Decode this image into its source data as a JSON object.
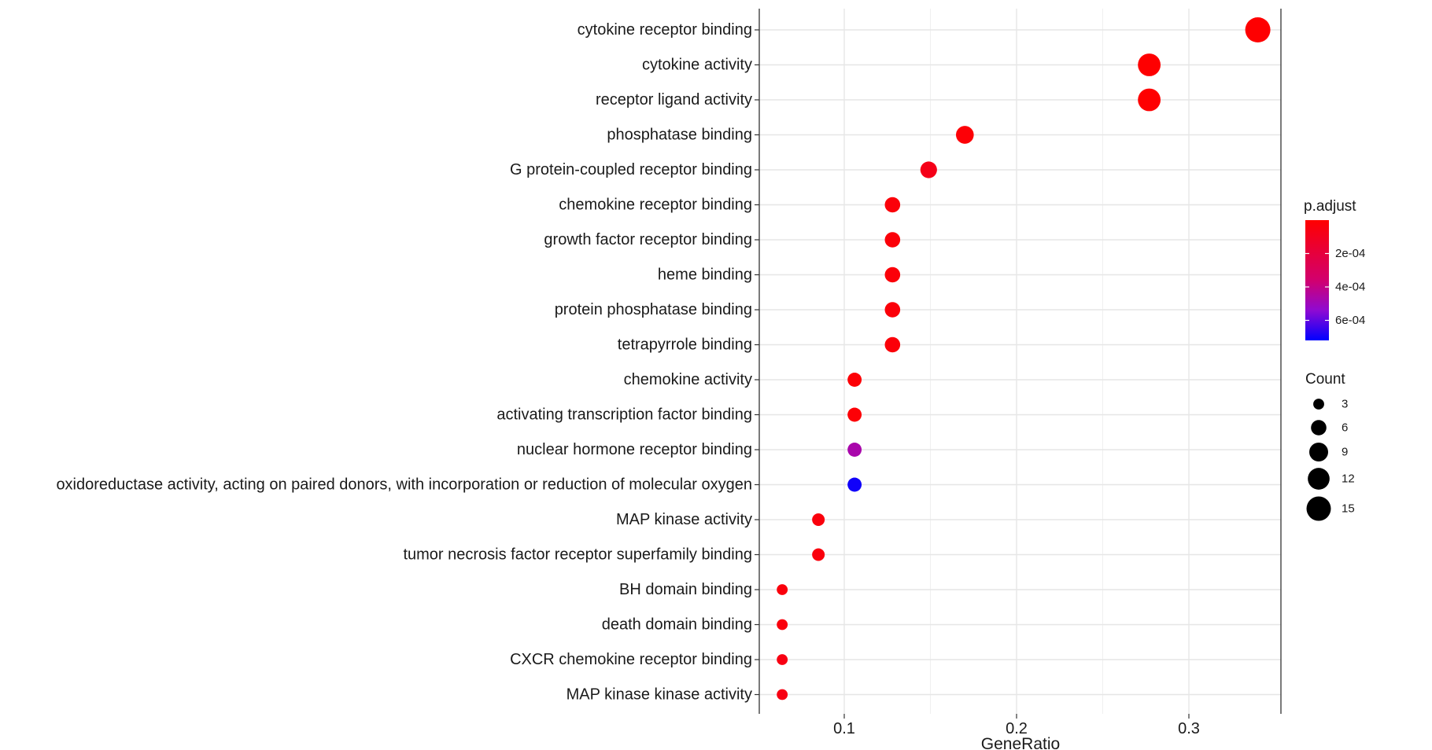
{
  "chart_data": {
    "type": "scatter",
    "xlabel": "GeneRatio",
    "ylabel": "",
    "title": "",
    "xlim": [
      0.05,
      0.353
    ],
    "x_ticks": [
      "0.1",
      "0.2",
      "0.3"
    ],
    "x_tick_values": [
      0.1,
      0.2,
      0.3
    ],
    "grid": true,
    "legend_position": "right",
    "color_scale": {
      "title": "p.adjust",
      "low_color": "#ff0000",
      "high_color": "#0000ff",
      "range": [
        1e-07,
        0.00072
      ],
      "ticks": [
        "2e-04",
        "4e-04",
        "6e-04"
      ],
      "tick_values": [
        0.0002,
        0.0004,
        0.0006
      ]
    },
    "size_legend": {
      "title": "Count",
      "ticks": [
        "3",
        "6",
        "9",
        "12",
        "15"
      ],
      "values": [
        3,
        6,
        9,
        12,
        15
      ]
    },
    "points": [
      {
        "term": "cytokine receptor binding",
        "gene_ratio": 0.34,
        "count": 16,
        "p_adjust": 5e-06
      },
      {
        "term": "cytokine activity",
        "gene_ratio": 0.277,
        "count": 13,
        "p_adjust": 5e-06
      },
      {
        "term": "receptor ligand activity",
        "gene_ratio": 0.277,
        "count": 13,
        "p_adjust": 5e-06
      },
      {
        "term": "phosphatase binding",
        "gene_ratio": 0.17,
        "count": 8,
        "p_adjust": 2e-05
      },
      {
        "term": "G protein-coupled receptor binding",
        "gene_ratio": 0.149,
        "count": 7,
        "p_adjust": 8e-05
      },
      {
        "term": "chemokine receptor binding",
        "gene_ratio": 0.128,
        "count": 6,
        "p_adjust": 3e-05
      },
      {
        "term": "growth factor receptor binding",
        "gene_ratio": 0.128,
        "count": 6,
        "p_adjust": 3e-05
      },
      {
        "term": "heme binding",
        "gene_ratio": 0.128,
        "count": 6,
        "p_adjust": 3e-05
      },
      {
        "term": "protein phosphatase binding",
        "gene_ratio": 0.128,
        "count": 6,
        "p_adjust": 3e-05
      },
      {
        "term": "tetrapyrrole binding",
        "gene_ratio": 0.128,
        "count": 6,
        "p_adjust": 3e-05
      },
      {
        "term": "chemokine activity",
        "gene_ratio": 0.106,
        "count": 5,
        "p_adjust": 2e-05
      },
      {
        "term": "activating transcription factor binding",
        "gene_ratio": 0.106,
        "count": 5,
        "p_adjust": 2e-05
      },
      {
        "term": "nuclear hormone receptor binding",
        "gene_ratio": 0.106,
        "count": 5,
        "p_adjust": 0.00047
      },
      {
        "term": "oxidoreductase activity, acting on paired donors, with incorporation or reduction of molecular oxygen",
        "gene_ratio": 0.106,
        "count": 5,
        "p_adjust": 0.0007
      },
      {
        "term": "MAP kinase activity",
        "gene_ratio": 0.085,
        "count": 4,
        "p_adjust": 4e-05
      },
      {
        "term": "tumor necrosis factor receptor superfamily binding",
        "gene_ratio": 0.085,
        "count": 4,
        "p_adjust": 4e-05
      },
      {
        "term": "BH domain binding",
        "gene_ratio": 0.064,
        "count": 3,
        "p_adjust": 4e-05
      },
      {
        "term": "death domain binding",
        "gene_ratio": 0.064,
        "count": 3,
        "p_adjust": 4e-05
      },
      {
        "term": "CXCR chemokine receptor binding",
        "gene_ratio": 0.064,
        "count": 3,
        "p_adjust": 6e-05
      },
      {
        "term": "MAP kinase kinase activity",
        "gene_ratio": 0.064,
        "count": 3,
        "p_adjust": 6e-05
      }
    ]
  }
}
